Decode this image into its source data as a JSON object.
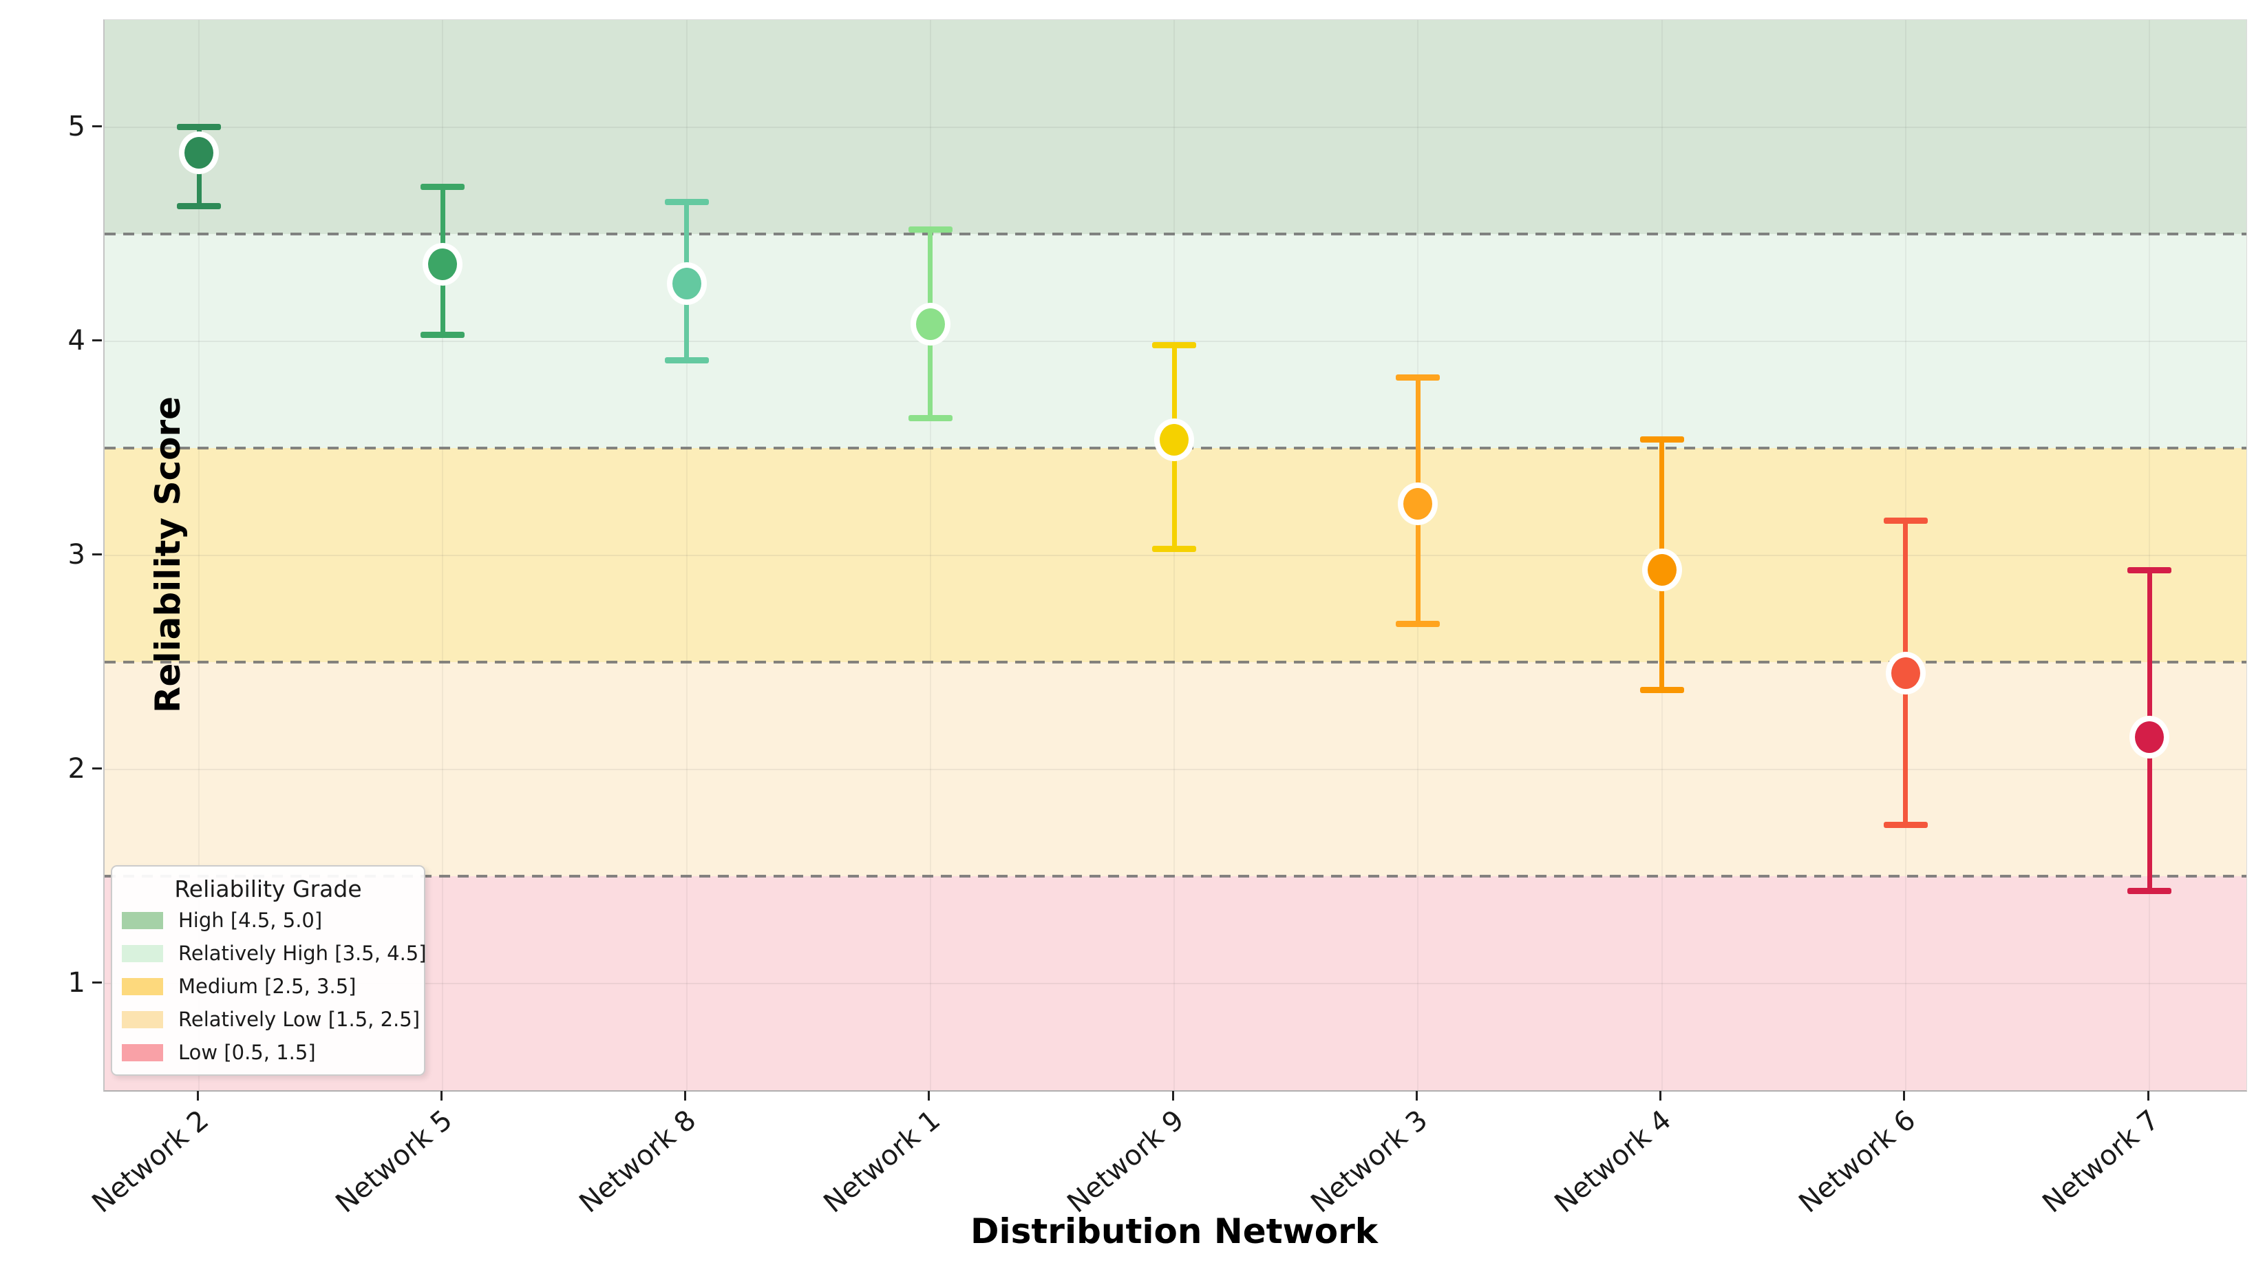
{
  "chart_data": {
    "type": "scatter",
    "xlabel": "Distribution Network",
    "ylabel": "Reliability Score",
    "ylim": [
      0.5,
      5.5
    ],
    "yticks": [
      1,
      2,
      3,
      4,
      5
    ],
    "grid": true,
    "categories": [
      "Network 2",
      "Network 5",
      "Network 8",
      "Network 1",
      "Network 9",
      "Network 3",
      "Network 4",
      "Network 6",
      "Network 7"
    ],
    "values": [
      4.88,
      4.36,
      4.27,
      4.08,
      3.54,
      3.24,
      2.93,
      2.45,
      2.15
    ],
    "err_low": [
      4.63,
      4.03,
      3.91,
      3.64,
      3.03,
      2.68,
      2.37,
      1.74,
      1.43
    ],
    "err_high": [
      5.0,
      4.72,
      4.65,
      4.52,
      3.98,
      3.83,
      3.54,
      3.16,
      2.93
    ],
    "point_colors": [
      "#2e8b57",
      "#3ca666",
      "#64c9a0",
      "#8ce08a",
      "#f5d100",
      "#ffa41e",
      "#fa9600",
      "#f4573c",
      "#d41e48"
    ],
    "grade_lines": {
      "values": [
        4.5,
        3.5,
        2.5,
        1.5
      ],
      "color": "#6f6f6f",
      "style": "dashed"
    },
    "bands": [
      {
        "name": "high",
        "label": "High [4.5, 5.0]",
        "span": [
          4.5,
          5.5
        ],
        "fill": "#d6e5d6",
        "legend_color": "#a5d1a7"
      },
      {
        "name": "relatively-high",
        "label": "Relatively High [3.5, 4.5]",
        "span": [
          3.5,
          4.5
        ],
        "fill": "#eaf5ec",
        "legend_color": "#d9f2dd"
      },
      {
        "name": "medium",
        "label": "Medium [2.5, 3.5]",
        "span": [
          2.5,
          3.5
        ],
        "fill": "#fcedb9",
        "legend_color": "#fdd97d"
      },
      {
        "name": "relatively-low",
        "label": "Relatively Low [1.5, 2.5]",
        "span": [
          1.5,
          2.5
        ],
        "fill": "#fdf1dc",
        "legend_color": "#fce3b0"
      },
      {
        "name": "low",
        "label": "Low [0.5, 1.5]",
        "span": [
          0.5,
          1.5
        ],
        "fill": "#fbdce0",
        "legend_color": "#f9a1a7"
      }
    ],
    "legend": {
      "title": "Reliability Grade",
      "position": "lower left"
    }
  }
}
